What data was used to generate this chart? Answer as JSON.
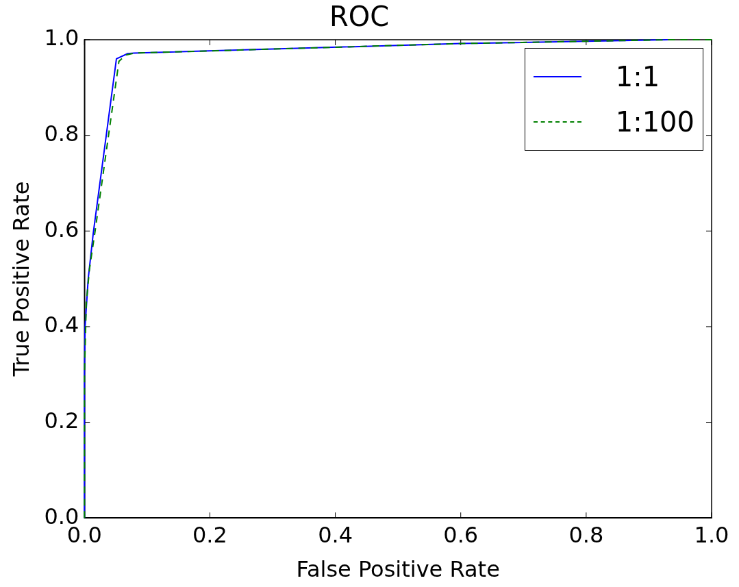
{
  "chart_data": {
    "type": "line",
    "title": "ROC",
    "xlabel": "False Positive Rate",
    "ylabel": "True Positive Rate",
    "xlim": [
      0,
      1
    ],
    "ylim": [
      0,
      1
    ],
    "xticks": [
      {
        "value": 0,
        "label": "0.0"
      },
      {
        "value": 0.2,
        "label": "0.2"
      },
      {
        "value": 0.4,
        "label": "0.4"
      },
      {
        "value": 0.6,
        "label": "0.6"
      },
      {
        "value": 0.8,
        "label": "0.8"
      },
      {
        "value": 1,
        "label": "1.0"
      }
    ],
    "yticks": [
      {
        "value": 0,
        "label": "0.0"
      },
      {
        "value": 0.2,
        "label": "0.2"
      },
      {
        "value": 0.4,
        "label": "0.4"
      },
      {
        "value": 0.6,
        "label": "0.6"
      },
      {
        "value": 0.8,
        "label": "0.8"
      },
      {
        "value": 1,
        "label": "1.0"
      }
    ],
    "grid": false,
    "legend": "top right",
    "marker": "none",
    "series": [
      {
        "name": "1:1",
        "color": "#0000ff",
        "line_style": "solid",
        "x": [
          0,
          0,
          0.001,
          0.006,
          0.014,
          0.051,
          0.069,
          0.079,
          0.6,
          0.93
        ],
        "values": [
          0,
          0.3,
          0.4,
          0.5,
          0.595,
          0.96,
          0.971,
          0.972,
          0.992,
          1
        ]
      },
      {
        "name": "1:100",
        "color": "#008000",
        "line_style": "dashed",
        "x": [
          0,
          0,
          0.003,
          0.008,
          0.017,
          0.055,
          0.066,
          0.079,
          0.6,
          0.93,
          1
        ],
        "values": [
          0,
          0.3,
          0.45,
          0.52,
          0.6,
          0.955,
          0.968,
          0.972,
          0.992,
          1,
          1
        ]
      }
    ]
  }
}
